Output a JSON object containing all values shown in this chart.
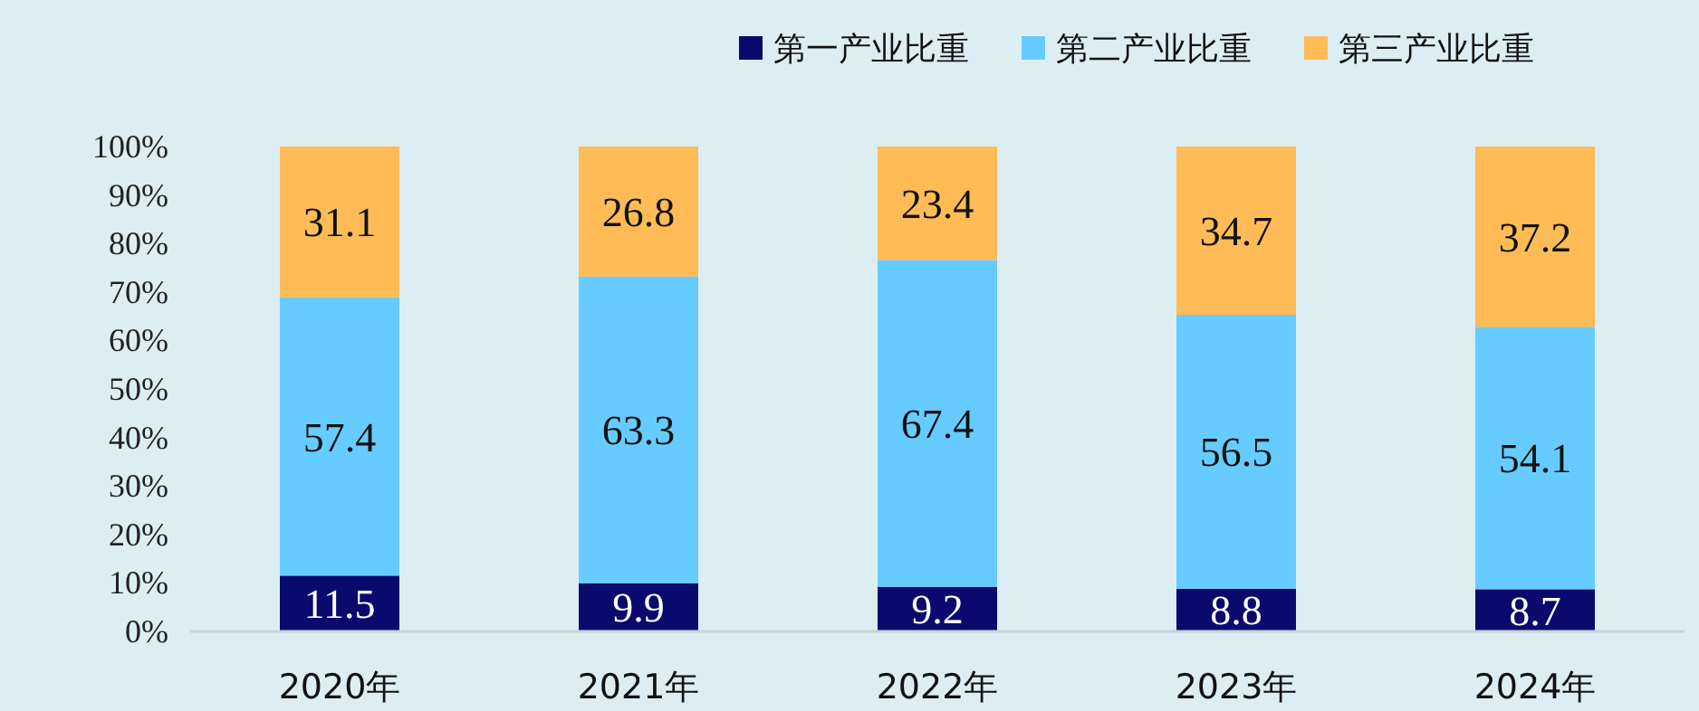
{
  "chart_data": {
    "type": "bar",
    "stacked": true,
    "categories": [
      "2020年",
      "2021年",
      "2022年",
      "2023年",
      "2024年"
    ],
    "series": [
      {
        "name": "第一产业比重",
        "color": "#0a0a6e",
        "values": [
          11.5,
          9.9,
          9.2,
          8.8,
          8.7
        ]
      },
      {
        "name": "第二产业比重",
        "color": "#66ccff",
        "values": [
          57.4,
          63.3,
          67.4,
          56.5,
          54.1
        ]
      },
      {
        "name": "第三产业比重",
        "color": "#ffbb55",
        "values": [
          31.1,
          26.8,
          23.4,
          34.7,
          37.2
        ]
      }
    ],
    "ylim": [
      0,
      100
    ],
    "yticks": [
      {
        "value": 0,
        "label": "0%"
      },
      {
        "value": 10,
        "label": "10%"
      },
      {
        "value": 20,
        "label": "20%"
      },
      {
        "value": 30,
        "label": "30%"
      },
      {
        "value": 40,
        "label": "40%"
      },
      {
        "value": 50,
        "label": "50%"
      },
      {
        "value": 60,
        "label": "60%"
      },
      {
        "value": 70,
        "label": "70%"
      },
      {
        "value": 80,
        "label": "80%"
      },
      {
        "value": 90,
        "label": "90%"
      },
      {
        "value": 100,
        "label": "100%"
      }
    ],
    "data_labels": true,
    "legend": "top",
    "grid": false
  }
}
